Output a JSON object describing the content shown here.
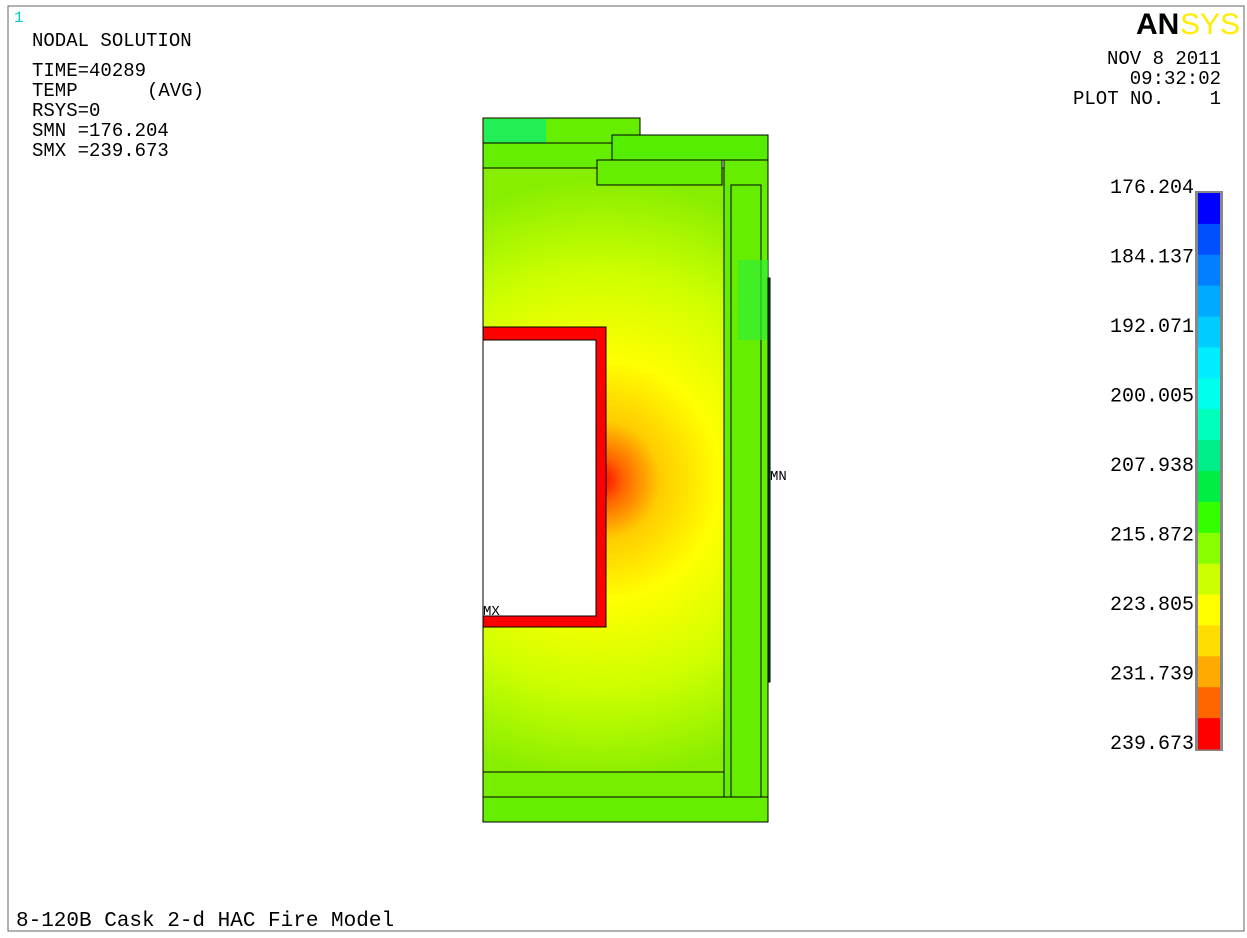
{
  "header": {
    "window_number": "1",
    "lines": [
      "NODAL SOLUTION",
      "TIME=40289",
      "TEMP",
      "(AVG)",
      "RSYS=0",
      "SMN =176.204",
      "SMX =239.673"
    ]
  },
  "logo": {
    "part1": "AN",
    "part2": "SYS"
  },
  "info": {
    "date": "NOV  8 2011",
    "time": "09:32:02",
    "plot_label": "PLOT NO.",
    "plot_number": "1"
  },
  "legend": {
    "labels": [
      "176.204",
      "184.137",
      "192.071",
      "200.005",
      "207.938",
      "215.872",
      "223.805",
      "231.739",
      "239.673"
    ],
    "colors": [
      "#0000ff",
      "#0050ff",
      "#0080ff",
      "#00aaff",
      "#00ccff",
      "#00eeff",
      "#00ffee",
      "#00ffbb",
      "#00ee88",
      "#00ee44",
      "#33ff00",
      "#88ff00",
      "#ccff00",
      "#ffff00",
      "#ffdd00",
      "#ffaa00",
      "#ff6600",
      "#ff0000"
    ]
  },
  "markers": {
    "min": "MN",
    "max": "MX"
  },
  "footer": {
    "title": "8-120B Cask 2-d HAC Fire Model"
  }
}
